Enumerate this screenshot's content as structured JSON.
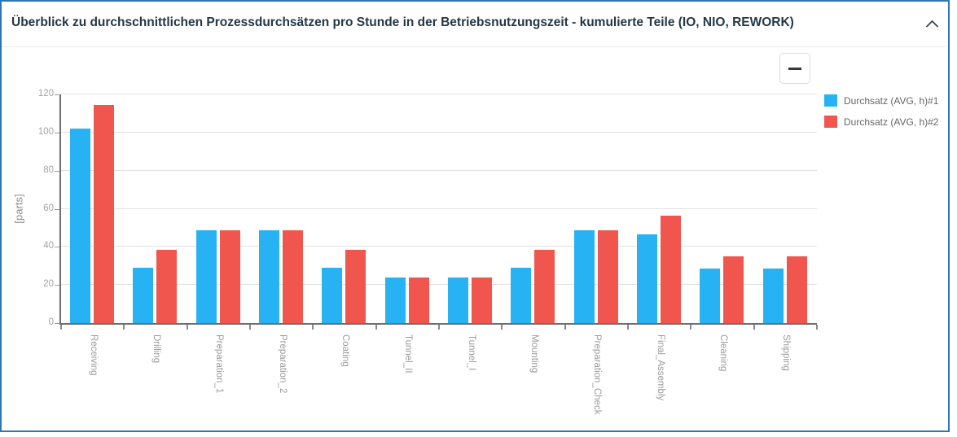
{
  "panel": {
    "title": "Überblick zu durchschnittlichen Prozessdurchsätzen pro Stunde in der Betriebsnutzungszeit - kumulierte Teile (IO, NIO, REWORK)",
    "border_color": "#2d77b3",
    "collapse_icon": "chevron-up-icon",
    "menu_icon": "hamburger-menu-icon"
  },
  "chart_data": {
    "type": "bar",
    "title": "",
    "categories": [
      "Receiving",
      "Drilling",
      "Preparation_1",
      "Preparation_2",
      "Coating",
      "Tunnel_II",
      "Tunnel_I",
      "Mounting",
      "Preparation_Check",
      "Final_Assembly",
      "Cleaning",
      "Shipping"
    ],
    "series": [
      {
        "name": "Durchsatz (AVG, h)#1",
        "color": "#27B2F4",
        "values": [
          102,
          29,
          48.5,
          48.5,
          29,
          24,
          24,
          29,
          48.5,
          46.5,
          28.5,
          28.5
        ]
      },
      {
        "name": "Durchsatz (AVG, h)#2",
        "color": "#F0564D",
        "values": [
          114.5,
          38.5,
          48.5,
          48.5,
          38.5,
          24,
          24,
          38.5,
          48.5,
          56.5,
          35,
          35
        ]
      }
    ],
    "xlabel": "",
    "ylabel": "[parts]",
    "ylim": [
      0,
      120
    ],
    "yticks": [
      0,
      20,
      40,
      60,
      80,
      100,
      120
    ],
    "grid": true,
    "legend_position": "right"
  }
}
